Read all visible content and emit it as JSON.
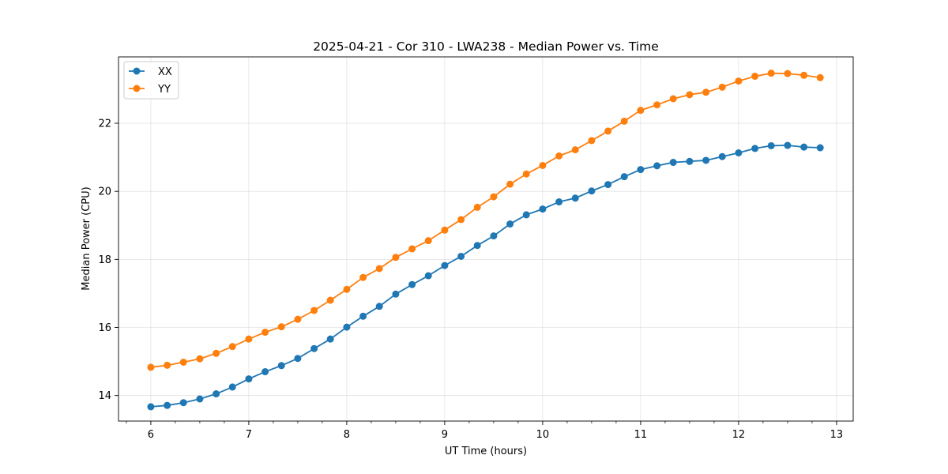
{
  "chart_data": {
    "type": "line",
    "title": "2025-04-21 - Cor 310 - LWA238 - Median Power vs. Time",
    "xlabel": "UT Time (hours)",
    "ylabel": "Median Power (CPU)",
    "xlim": [
      5.67,
      13.17
    ],
    "ylim": [
      13.25,
      23.95
    ],
    "grid": true,
    "legend_position": "top-left",
    "x_ticks": [
      6,
      7,
      8,
      9,
      10,
      11,
      12,
      13
    ],
    "x_tick_labels": [
      "6",
      "7",
      "8",
      "9",
      "10",
      "11",
      "12",
      "13"
    ],
    "y_ticks": [
      14,
      16,
      18,
      20,
      22
    ],
    "y_tick_labels": [
      "14",
      "16",
      "18",
      "20",
      "22"
    ],
    "x_minor_ticks": [
      5.75,
      6.25,
      6.5,
      6.75,
      7.25,
      7.5,
      7.75,
      8.25,
      8.5,
      8.75,
      9.25,
      9.5,
      9.75,
      10.25,
      10.5,
      10.75,
      11.25,
      11.5,
      11.75,
      12.25,
      12.5,
      12.75,
      13.0
    ],
    "x": [
      6.0,
      6.167,
      6.333,
      6.5,
      6.667,
      6.833,
      7.0,
      7.167,
      7.333,
      7.5,
      7.667,
      7.833,
      8.0,
      8.167,
      8.333,
      8.5,
      8.667,
      8.833,
      9.0,
      9.167,
      9.333,
      9.5,
      9.667,
      9.833,
      10.0,
      10.167,
      10.333,
      10.5,
      10.667,
      10.833,
      11.0,
      11.167,
      11.333,
      11.5,
      11.667,
      11.833,
      12.0,
      12.167,
      12.333,
      12.5,
      12.667,
      12.833
    ],
    "series": [
      {
        "name": "XX",
        "color": "#1f77b4",
        "values": [
          13.67,
          13.71,
          13.79,
          13.9,
          14.05,
          14.25,
          14.49,
          14.7,
          14.88,
          15.09,
          15.38,
          15.66,
          16.01,
          16.33,
          16.62,
          16.98,
          17.26,
          17.52,
          17.82,
          18.09,
          18.41,
          18.69,
          19.04,
          19.31,
          19.48,
          19.69,
          19.8,
          20.01,
          20.2,
          20.43,
          20.64,
          20.75,
          20.85,
          20.88,
          20.91,
          21.02,
          21.13,
          21.26,
          21.34,
          21.35,
          21.3,
          21.28
        ]
      },
      {
        "name": "YY",
        "color": "#ff7f0e",
        "values": [
          14.83,
          14.89,
          14.98,
          15.08,
          15.24,
          15.44,
          15.66,
          15.86,
          16.02,
          16.24,
          16.5,
          16.8,
          17.12,
          17.47,
          17.73,
          18.06,
          18.31,
          18.55,
          18.86,
          19.17,
          19.53,
          19.84,
          20.21,
          20.51,
          20.76,
          21.04,
          21.22,
          21.49,
          21.77,
          22.06,
          22.38,
          22.54,
          22.72,
          22.84,
          22.91,
          23.06,
          23.24,
          23.38,
          23.47,
          23.46,
          23.41,
          23.34
        ]
      }
    ]
  }
}
